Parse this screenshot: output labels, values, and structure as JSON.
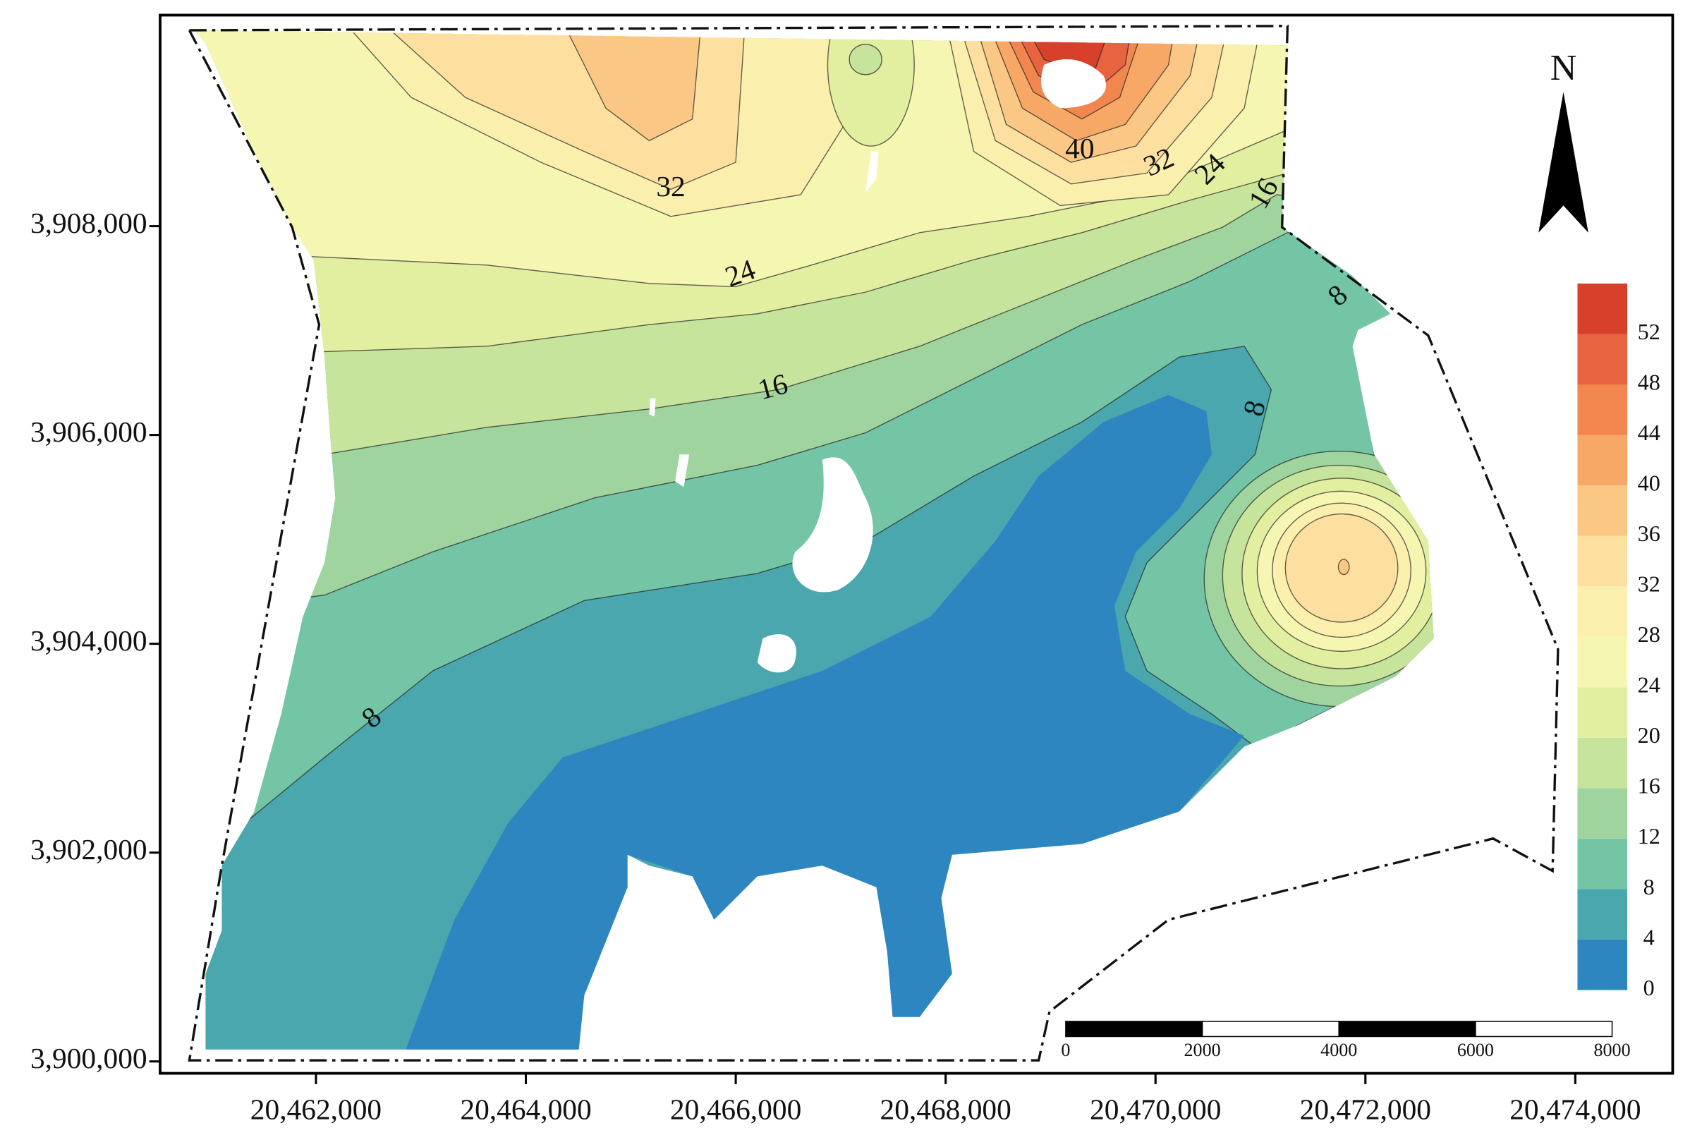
{
  "map": {
    "xaxis": {
      "lim": [
        20460515,
        20474928
      ],
      "ticks": [
        {
          "value": 20462000,
          "label": "20,462,000"
        },
        {
          "value": 20464000,
          "label": "20,464,000"
        },
        {
          "value": 20466000,
          "label": "20,466,000"
        },
        {
          "value": 20468000,
          "label": "20,468,000"
        },
        {
          "value": 20470000,
          "label": "20,470,000"
        },
        {
          "value": 20472000,
          "label": "20,472,000"
        },
        {
          "value": 20474000,
          "label": "20,474,000"
        }
      ]
    },
    "yaxis": {
      "lim": [
        3899886,
        3910021
      ],
      "ticks": [
        {
          "value": 3900000,
          "label": "3,900,000"
        },
        {
          "value": 3902000,
          "label": "3,902,000"
        },
        {
          "value": 3904000,
          "label": "3,904,000"
        },
        {
          "value": 3906000,
          "label": "3,906,000"
        },
        {
          "value": 3908000,
          "label": "3,908,000"
        }
      ]
    },
    "contour_labels": [
      32,
      24,
      16,
      8,
      40,
      32,
      24,
      16,
      8,
      8
    ],
    "legend": {
      "levels": [
        0,
        4,
        8,
        12,
        16,
        20,
        24,
        28,
        32,
        36,
        40,
        44,
        48,
        52
      ],
      "colors": [
        "#2e86c1",
        "#4ba7ae",
        "#74c4a6",
        "#9fd49e",
        "#c6e49c",
        "#e3efa0",
        "#f5f6b2",
        "#fbefae",
        "#fde0a0",
        "#fbc784",
        "#f7a867",
        "#f2864f",
        "#e86340",
        "#d7402b"
      ]
    },
    "scale_bar": {
      "ticks": [
        0,
        2000,
        4000,
        6000,
        8000
      ]
    },
    "north": "N"
  }
}
